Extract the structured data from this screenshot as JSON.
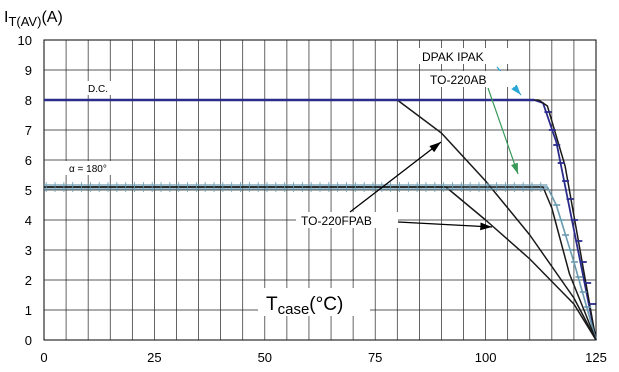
{
  "chart_data": {
    "type": "line",
    "ylabel_main": "I",
    "ylabel_sub": "T(AV)",
    "ylabel_unit": "(A)",
    "xlabel_main": "T",
    "xlabel_sub": "case",
    "xlabel_unit": "(°C)",
    "xlim": [
      0,
      125
    ],
    "ylim": [
      0,
      10
    ],
    "xticks": [
      0,
      25,
      50,
      75,
      100,
      125
    ],
    "yticks": [
      0,
      1,
      2,
      3,
      4,
      5,
      6,
      7,
      8,
      9,
      10
    ],
    "grid": true,
    "labels": {
      "dc": "D.C.",
      "alpha": "α = 180°",
      "dpak_ipak": "DPAK  IPAK",
      "to220ab": "TO-220AB",
      "to220fpab": "TO-220FPAB"
    },
    "colors": {
      "dc_line": "#2b2b8c",
      "alpha_line": "#6a9ab0",
      "dpak_arrow": "#2aa6d6",
      "to220ab_arrow": "#3a9a5a",
      "marker": "#2b2b8c",
      "curve": "#1a1a1a"
    },
    "series": [
      {
        "key": "dc_dpak",
        "x": [
          0,
          111,
          113,
          116,
          125
        ],
        "y": [
          8,
          8,
          7.9,
          6.6,
          0
        ]
      },
      {
        "key": "dc_to220ab",
        "x": [
          0,
          112,
          114,
          118,
          125
        ],
        "y": [
          8,
          8,
          7.8,
          5.8,
          0
        ]
      },
      {
        "key": "dc_to220fpab",
        "x": [
          0,
          80,
          90,
          100,
          110,
          120,
          125
        ],
        "y": [
          8,
          8,
          6.9,
          5.3,
          3.5,
          1.4,
          0
        ]
      },
      {
        "key": "a180_dpak",
        "x": [
          0,
          114,
          116,
          120,
          125
        ],
        "y": [
          5.1,
          5.1,
          4.5,
          2.6,
          0
        ]
      },
      {
        "key": "a180_to220ab",
        "x": [
          0,
          113,
          115,
          119,
          125
        ],
        "y": [
          5.1,
          5.1,
          4.4,
          2.2,
          0
        ]
      },
      {
        "key": "a180_to220fpab",
        "x": [
          0,
          91,
          100,
          110,
          120,
          125
        ],
        "y": [
          5.1,
          5.1,
          4.0,
          2.7,
          1.2,
          0
        ]
      }
    ]
  }
}
